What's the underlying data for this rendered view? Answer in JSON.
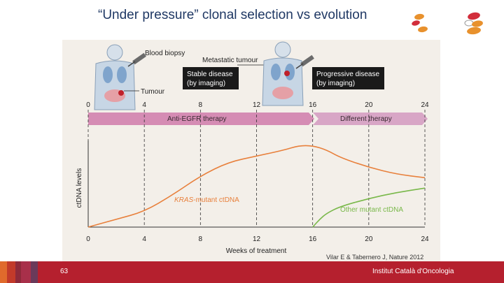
{
  "slide": {
    "title": "“Under pressure” clonal selection vs evolution",
    "page_number": "63",
    "institute": "Institut Català d'Oncologia",
    "citation": "Vilar E & Tabernero J, Nature 2012"
  },
  "figure": {
    "blood_biopsy": "Blood biopsy",
    "tumour": "Tumour",
    "metastatic_tumour": "Metastatic tumour",
    "stable_disease_line1": "Stable disease",
    "stable_disease_line2": "(by imaging)",
    "progressive_disease_line1": "Progressive disease",
    "progressive_disease_line2": "(by imaging)",
    "therapy1": "Anti-EGFR therapy",
    "therapy2": "Different therapy",
    "kras_italic": "KRAS",
    "kras_rest": "-mutant ctDNA",
    "other_mutant": "Other mutant ctDNA"
  },
  "chart_data": {
    "type": "line",
    "xlabel": "Weeks of treatment",
    "ylabel": "ctDNA levels",
    "x_ticks": [
      0,
      4,
      8,
      12,
      16,
      20,
      24
    ],
    "xlim": [
      0,
      24
    ],
    "ylim": [
      0,
      1
    ],
    "series": [
      {
        "name": "KRAS-mutant ctDNA",
        "color": "#e8803c",
        "points": [
          [
            0,
            0.0
          ],
          [
            2,
            0.09
          ],
          [
            4,
            0.18
          ],
          [
            6,
            0.37
          ],
          [
            8,
            0.59
          ],
          [
            10,
            0.75
          ],
          [
            12,
            0.82
          ],
          [
            14,
            0.89
          ],
          [
            15,
            0.94
          ],
          [
            16,
            0.94
          ],
          [
            17,
            0.89
          ],
          [
            18,
            0.8
          ],
          [
            20,
            0.69
          ],
          [
            22,
            0.61
          ],
          [
            24,
            0.57
          ]
        ]
      },
      {
        "name": "Other mutant ctDNA",
        "color": "#79b84a",
        "points": [
          [
            16,
            0.0
          ],
          [
            16.5,
            0.09
          ],
          [
            17,
            0.16
          ],
          [
            18,
            0.24
          ],
          [
            20,
            0.33
          ],
          [
            22,
            0.4
          ],
          [
            24,
            0.45
          ]
        ]
      }
    ]
  },
  "colors": {
    "title": "#1f3864",
    "footer": "#b5202e",
    "therapy_arrow": "#d58cb4",
    "body_fill": "#b5c8dc",
    "lung": "#d97a84",
    "tumour": "#c0202a"
  }
}
